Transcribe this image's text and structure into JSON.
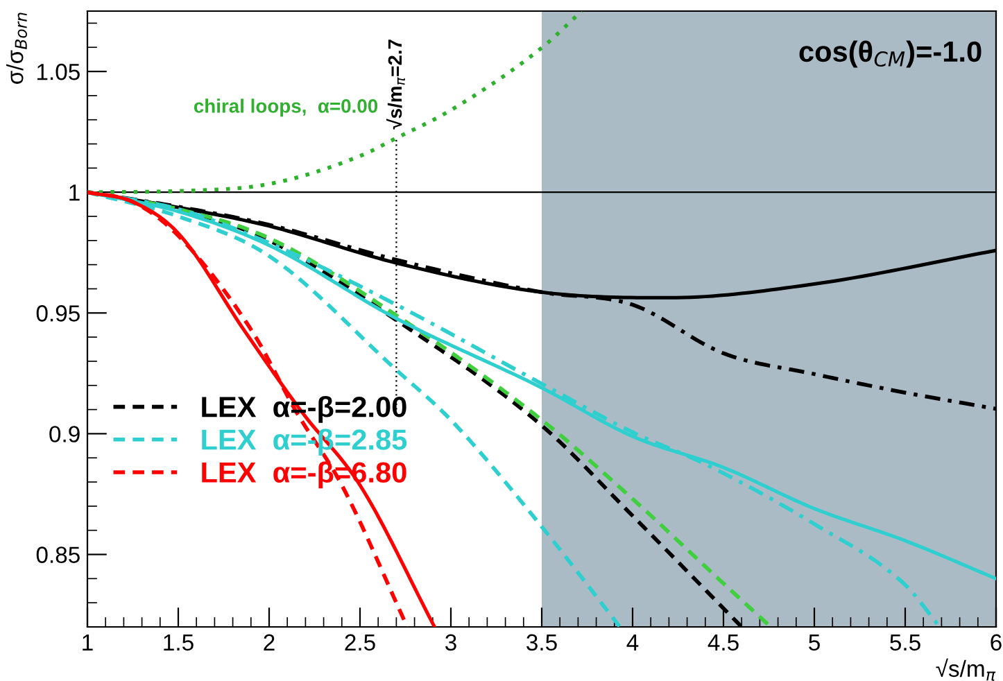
{
  "chart_data": {
    "type": "line",
    "xlabel": "√s/m$_{π}$",
    "ylabel": "σ/σ$_{Born}$",
    "xlim": [
      1,
      6
    ],
    "ylim": [
      0.82,
      1.075
    ],
    "xticks": [
      1,
      1.5,
      2,
      2.5,
      3,
      3.5,
      4,
      4.5,
      5,
      5.5,
      6
    ],
    "yticks": [
      0.85,
      0.9,
      0.95,
      1,
      1.05
    ],
    "grid": false,
    "legend": "left",
    "marker": "none",
    "series": [
      {
        "color": "#000000",
        "line_style": "solid",
        "x": [
          1,
          1.5,
          2,
          2.7,
          3.5,
          4.2,
          5,
          6
        ],
        "values": [
          1,
          0.9937,
          0.986,
          0.9707,
          0.9586,
          0.9563,
          0.962,
          0.9759
        ]
      },
      {
        "color": "#000000",
        "line_style": "dashdot",
        "x": [
          1,
          1.5,
          2,
          2.7,
          3.5,
          4,
          4.5,
          5,
          5.5,
          6
        ],
        "values": [
          1,
          0.994,
          0.9865,
          0.972,
          0.9586,
          0.9534,
          0.9333,
          0.9247,
          0.917,
          0.9103
        ]
      },
      {
        "name": "LEX  α=-β=2.00",
        "color": "#000000",
        "line_style": "dashed",
        "x": [
          1,
          1.5,
          2,
          2.7,
          3.5,
          4,
          4.6
        ],
        "values": [
          1,
          0.993,
          0.98,
          0.947,
          0.9034,
          0.866,
          0.82
        ]
      },
      {
        "color": "#3fcf3f",
        "line_style": "dashed",
        "x": [
          1,
          1.5,
          2,
          2.7,
          3.5,
          4,
          4.5,
          4.76
        ],
        "values": [
          1,
          0.993,
          0.981,
          0.949,
          0.9057,
          0.873,
          0.838,
          0.82
        ]
      },
      {
        "name": "chiral loops,  α=0.00",
        "color": "#2fb02f",
        "line_style": "dotted",
        "x": [
          1,
          1.5,
          2,
          2.5,
          2.7,
          3,
          3.5,
          3.72
        ],
        "values": [
          1,
          1.0005,
          1.0034,
          1.015,
          1.0224,
          1.034,
          1.0598,
          1.075
        ]
      },
      {
        "color": "#2fcfcf",
        "line_style": "solid",
        "x": [
          1,
          1.5,
          2,
          2.7,
          3.5,
          4,
          4.5,
          5,
          5.5,
          6
        ],
        "values": [
          1,
          0.992,
          0.978,
          0.9477,
          0.919,
          0.8989,
          0.886,
          0.869,
          0.8557,
          0.84
        ]
      },
      {
        "color": "#2fcfcf",
        "line_style": "dashdot",
        "x": [
          1,
          1.5,
          2,
          2.7,
          3.5,
          4,
          4.4,
          5,
          5.5,
          5.69
        ],
        "values": [
          1,
          0.993,
          0.979,
          0.9534,
          0.9207,
          0.9006,
          0.8874,
          0.8626,
          0.8374,
          0.82
        ]
      },
      {
        "name": "LEX  α=-β=2.85",
        "color": "#2fcfcf",
        "line_style": "dashed",
        "x": [
          1,
          1.5,
          2,
          2.7,
          3,
          3.5,
          3.93
        ],
        "values": [
          1,
          0.99,
          0.9736,
          0.9264,
          0.9057,
          0.8615,
          0.82
        ]
      },
      {
        "color": "#ff0000",
        "line_style": "solid",
        "x": [
          1,
          1.25,
          1.5,
          1.87,
          2.18,
          2.5,
          2.91
        ],
        "values": [
          1,
          0.996,
          0.983,
          0.942,
          0.909,
          0.8787,
          0.82
        ]
      },
      {
        "name": "LEX  α=-β=6.80",
        "color": "#ff0000",
        "line_style": "dashed",
        "x": [
          1,
          1.25,
          1.5,
          1.91,
          2.15,
          2.4,
          2.76
        ],
        "values": [
          1,
          0.996,
          0.982,
          0.942,
          0.909,
          0.8787,
          0.82
        ]
      }
    ],
    "ref_lines": [
      {
        "axis": "x",
        "value": 2.7,
        "label": "√s/m$_{π}$=2.7",
        "color": "#000000",
        "line_style": "dotted"
      },
      {
        "axis": "y",
        "value": 1,
        "label": null,
        "color": "#000000",
        "line_style": "solid"
      }
    ],
    "bands": [
      {
        "axis": "x",
        "from": 3.5,
        "to": 6,
        "label": null,
        "color": "#abbbc6"
      }
    ],
    "annotations": [
      "cos(θ$_{CM}$)=-1.0"
    ]
  }
}
